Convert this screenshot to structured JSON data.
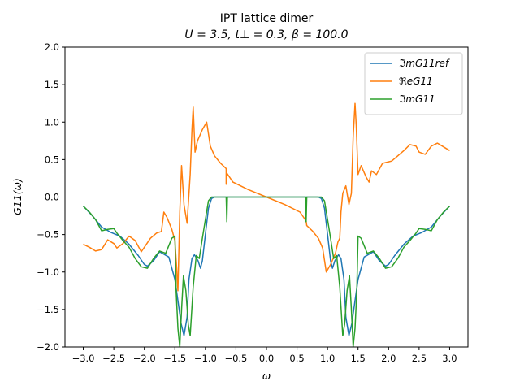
{
  "chart_data": {
    "type": "line",
    "title_line1": "IPT lattice dimer",
    "title_line2": "U = 3.5, t⊥ = 0.3, β = 100.0",
    "xlabel": "ω",
    "ylabel": "G11(ω)",
    "xlim": [
      -3.3,
      3.3
    ],
    "ylim": [
      -2.0,
      2.0
    ],
    "xticks": [
      -3.0,
      -2.5,
      -2.0,
      -1.5,
      -1.0,
      -0.5,
      0.0,
      0.5,
      1.0,
      1.5,
      2.0,
      2.5,
      3.0
    ],
    "xtick_labels": [
      "−3.0",
      "−2.5",
      "−2.0",
      "−1.5",
      "−1.0",
      "−0.5",
      "0.0",
      "0.5",
      "1.0",
      "1.5",
      "2.0",
      "2.5",
      "3.0"
    ],
    "yticks": [
      -2.0,
      -1.5,
      -1.0,
      -0.5,
      0.0,
      0.5,
      1.0,
      1.5,
      2.0
    ],
    "ytick_labels": [
      "−2.0",
      "−1.5",
      "−1.0",
      "−0.5",
      "0.0",
      "0.5",
      "1.0",
      "1.5",
      "2.0"
    ],
    "legend_position": "top-right",
    "series": [
      {
        "name": "ℑmG11ref",
        "color": "#1f77b4",
        "points": [
          [
            -3.0,
            -0.12
          ],
          [
            -2.85,
            -0.25
          ],
          [
            -2.7,
            -0.4
          ],
          [
            -2.55,
            -0.47
          ],
          [
            -2.4,
            -0.52
          ],
          [
            -2.25,
            -0.63
          ],
          [
            -2.1,
            -0.78
          ],
          [
            -2.0,
            -0.9
          ],
          [
            -1.95,
            -0.92
          ],
          [
            -1.85,
            -0.85
          ],
          [
            -1.75,
            -0.73
          ],
          [
            -1.6,
            -0.8
          ],
          [
            -1.5,
            -1.1
          ],
          [
            -1.45,
            -1.38
          ],
          [
            -1.4,
            -1.68
          ],
          [
            -1.35,
            -1.85
          ],
          [
            -1.3,
            -1.6
          ],
          [
            -1.27,
            -1.1
          ],
          [
            -1.22,
            -0.82
          ],
          [
            -1.18,
            -0.77
          ],
          [
            -1.12,
            -0.85
          ],
          [
            -1.08,
            -0.95
          ],
          [
            -1.05,
            -0.85
          ],
          [
            -1.0,
            -0.5
          ],
          [
            -0.95,
            -0.15
          ],
          [
            -0.9,
            -0.02
          ],
          [
            -0.85,
            0.0
          ],
          [
            0.85,
            0.0
          ],
          [
            0.9,
            -0.02
          ],
          [
            0.95,
            -0.15
          ],
          [
            1.0,
            -0.5
          ],
          [
            1.05,
            -0.85
          ],
          [
            1.08,
            -0.95
          ],
          [
            1.12,
            -0.85
          ],
          [
            1.18,
            -0.77
          ],
          [
            1.22,
            -0.82
          ],
          [
            1.27,
            -1.1
          ],
          [
            1.3,
            -1.6
          ],
          [
            1.35,
            -1.85
          ],
          [
            1.4,
            -1.68
          ],
          [
            1.45,
            -1.38
          ],
          [
            1.5,
            -1.1
          ],
          [
            1.6,
            -0.8
          ],
          [
            1.75,
            -0.73
          ],
          [
            1.85,
            -0.85
          ],
          [
            1.95,
            -0.92
          ],
          [
            2.0,
            -0.9
          ],
          [
            2.1,
            -0.78
          ],
          [
            2.25,
            -0.63
          ],
          [
            2.4,
            -0.52
          ],
          [
            2.55,
            -0.47
          ],
          [
            2.7,
            -0.4
          ],
          [
            2.85,
            -0.25
          ],
          [
            3.0,
            -0.12
          ]
        ]
      },
      {
        "name": "ℜeG11",
        "color": "#ff7f0e",
        "points": [
          [
            -3.0,
            -0.63
          ],
          [
            -2.9,
            -0.67
          ],
          [
            -2.8,
            -0.72
          ],
          [
            -2.7,
            -0.7
          ],
          [
            -2.6,
            -0.57
          ],
          [
            -2.5,
            -0.62
          ],
          [
            -2.45,
            -0.68
          ],
          [
            -2.35,
            -0.62
          ],
          [
            -2.25,
            -0.52
          ],
          [
            -2.15,
            -0.58
          ],
          [
            -2.05,
            -0.73
          ],
          [
            -2.0,
            -0.67
          ],
          [
            -1.9,
            -0.55
          ],
          [
            -1.8,
            -0.48
          ],
          [
            -1.72,
            -0.46
          ],
          [
            -1.68,
            -0.2
          ],
          [
            -1.63,
            -0.27
          ],
          [
            -1.55,
            -0.43
          ],
          [
            -1.5,
            -0.58
          ],
          [
            -1.47,
            -0.95
          ],
          [
            -1.45,
            -1.25
          ],
          [
            -1.42,
            -0.2
          ],
          [
            -1.39,
            0.42
          ],
          [
            -1.35,
            -0.1
          ],
          [
            -1.3,
            -0.35
          ],
          [
            -1.25,
            0.3
          ],
          [
            -1.22,
            0.9
          ],
          [
            -1.2,
            1.2
          ],
          [
            -1.17,
            0.6
          ],
          [
            -1.13,
            0.75
          ],
          [
            -1.05,
            0.9
          ],
          [
            -0.98,
            1.0
          ],
          [
            -0.92,
            0.68
          ],
          [
            -0.85,
            0.55
          ],
          [
            -0.75,
            0.45
          ],
          [
            -0.66,
            0.38
          ],
          [
            -0.66,
            0.17
          ],
          [
            -0.65,
            0.32
          ],
          [
            -0.55,
            0.2
          ],
          [
            -0.3,
            0.1
          ],
          [
            0.0,
            0.0
          ],
          [
            0.3,
            -0.1
          ],
          [
            0.55,
            -0.2
          ],
          [
            0.65,
            -0.32
          ],
          [
            0.66,
            -0.38
          ],
          [
            0.75,
            -0.45
          ],
          [
            0.85,
            -0.55
          ],
          [
            0.92,
            -0.68
          ],
          [
            0.98,
            -1.0
          ],
          [
            1.05,
            -0.9
          ],
          [
            1.13,
            -0.75
          ],
          [
            1.17,
            -0.6
          ],
          [
            1.2,
            -0.55
          ],
          [
            1.22,
            -0.2
          ],
          [
            1.25,
            0.05
          ],
          [
            1.3,
            0.15
          ],
          [
            1.35,
            -0.1
          ],
          [
            1.39,
            0.05
          ],
          [
            1.42,
            0.8
          ],
          [
            1.45,
            1.25
          ],
          [
            1.47,
            0.95
          ],
          [
            1.5,
            0.3
          ],
          [
            1.55,
            0.42
          ],
          [
            1.63,
            0.27
          ],
          [
            1.68,
            0.2
          ],
          [
            1.72,
            0.35
          ],
          [
            1.8,
            0.3
          ],
          [
            1.9,
            0.45
          ],
          [
            2.0,
            0.47
          ],
          [
            2.05,
            0.48
          ],
          [
            2.15,
            0.55
          ],
          [
            2.25,
            0.62
          ],
          [
            2.35,
            0.7
          ],
          [
            2.45,
            0.68
          ],
          [
            2.5,
            0.6
          ],
          [
            2.6,
            0.57
          ],
          [
            2.7,
            0.68
          ],
          [
            2.8,
            0.72
          ],
          [
            2.9,
            0.67
          ],
          [
            3.0,
            0.62
          ]
        ]
      },
      {
        "name": "ℑmG11",
        "color": "#2ca02c",
        "points": [
          [
            -3.0,
            -0.12
          ],
          [
            -2.9,
            -0.2
          ],
          [
            -2.8,
            -0.3
          ],
          [
            -2.7,
            -0.45
          ],
          [
            -2.6,
            -0.43
          ],
          [
            -2.5,
            -0.42
          ],
          [
            -2.45,
            -0.48
          ],
          [
            -2.35,
            -0.58
          ],
          [
            -2.25,
            -0.67
          ],
          [
            -2.15,
            -0.82
          ],
          [
            -2.05,
            -0.93
          ],
          [
            -1.95,
            -0.95
          ],
          [
            -1.85,
            -0.82
          ],
          [
            -1.75,
            -0.72
          ],
          [
            -1.65,
            -0.75
          ],
          [
            -1.55,
            -0.55
          ],
          [
            -1.5,
            -0.52
          ],
          [
            -1.48,
            -1.25
          ],
          [
            -1.45,
            -1.75
          ],
          [
            -1.42,
            -2.0
          ],
          [
            -1.39,
            -1.5
          ],
          [
            -1.36,
            -1.05
          ],
          [
            -1.32,
            -1.25
          ],
          [
            -1.28,
            -1.7
          ],
          [
            -1.25,
            -1.85
          ],
          [
            -1.2,
            -1.2
          ],
          [
            -1.15,
            -0.78
          ],
          [
            -1.1,
            -0.82
          ],
          [
            -1.05,
            -0.55
          ],
          [
            -1.0,
            -0.3
          ],
          [
            -0.95,
            -0.05
          ],
          [
            -0.9,
            0.0
          ],
          [
            -0.66,
            0.0
          ],
          [
            -0.65,
            -0.33
          ],
          [
            -0.64,
            0.0
          ],
          [
            0.64,
            0.0
          ],
          [
            0.65,
            -0.33
          ],
          [
            0.66,
            0.0
          ],
          [
            0.9,
            0.0
          ],
          [
            0.95,
            -0.05
          ],
          [
            1.0,
            -0.3
          ],
          [
            1.05,
            -0.55
          ],
          [
            1.1,
            -0.82
          ],
          [
            1.15,
            -0.78
          ],
          [
            1.2,
            -1.2
          ],
          [
            1.25,
            -1.85
          ],
          [
            1.28,
            -1.7
          ],
          [
            1.32,
            -1.25
          ],
          [
            1.36,
            -1.05
          ],
          [
            1.39,
            -1.5
          ],
          [
            1.42,
            -2.0
          ],
          [
            1.45,
            -1.75
          ],
          [
            1.48,
            -1.25
          ],
          [
            1.5,
            -0.52
          ],
          [
            1.55,
            -0.55
          ],
          [
            1.65,
            -0.75
          ],
          [
            1.75,
            -0.72
          ],
          [
            1.85,
            -0.82
          ],
          [
            1.95,
            -0.95
          ],
          [
            2.05,
            -0.93
          ],
          [
            2.15,
            -0.82
          ],
          [
            2.25,
            -0.67
          ],
          [
            2.35,
            -0.58
          ],
          [
            2.45,
            -0.48
          ],
          [
            2.5,
            -0.42
          ],
          [
            2.6,
            -0.43
          ],
          [
            2.7,
            -0.45
          ],
          [
            2.8,
            -0.3
          ],
          [
            2.9,
            -0.2
          ],
          [
            3.0,
            -0.12
          ]
        ]
      }
    ]
  }
}
